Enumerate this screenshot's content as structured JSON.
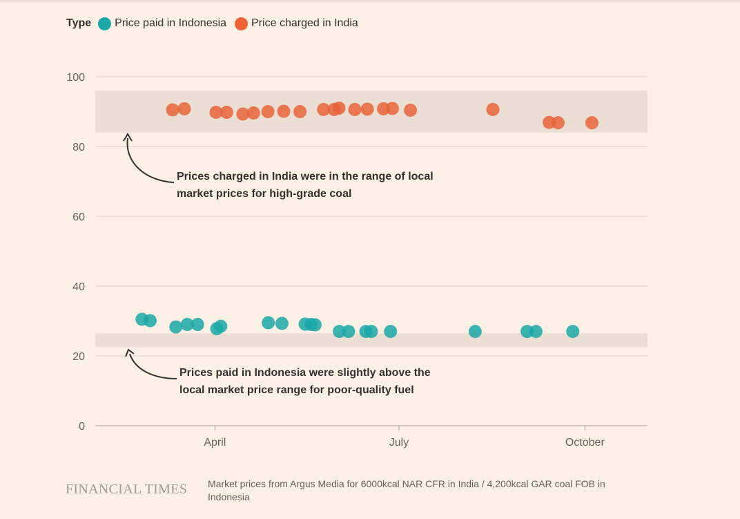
{
  "legend": {
    "title": "Type",
    "items": [
      {
        "label": "Price paid in Indonesia",
        "color": "#1aa7a7"
      },
      {
        "label": "Price charged in India",
        "color": "#f06236"
      }
    ]
  },
  "annotations": {
    "india": {
      "line1": "Prices charged in India were in the range of local",
      "line2": "market prices for high-grade coal"
    },
    "indonesia": {
      "line1": "Prices paid in Indonesia were slightly above the",
      "line2": "local market price range for poor-quality fuel"
    }
  },
  "footer": {
    "logo": "FINANCIAL TIMES",
    "source": "Market prices from Argus Media for 6000kcal NAR CFR in India / 4,200kcal GAR coal FOB in Indonesia"
  },
  "chart_data": {
    "type": "scatter",
    "title": "",
    "xlabel": "",
    "ylabel": "",
    "ylim": [
      0,
      100
    ],
    "y_ticks": [
      0,
      20,
      40,
      60,
      80,
      100
    ],
    "x_range_days": [
      15,
      165
    ],
    "x_ticks": [
      {
        "label": "April",
        "day": 47.5
      },
      {
        "label": "July",
        "day": 97.5
      },
      {
        "label": "October",
        "day": 148
      }
    ],
    "bands": [
      {
        "name": "India local market range (high-grade coal)",
        "y0": 84,
        "y1": 96
      },
      {
        "name": "Indonesia local market range (poor-quality fuel)",
        "y0": 22.5,
        "y1": 26.5
      }
    ],
    "series": [
      {
        "name": "Price charged in India",
        "color": "#e8643a",
        "points": [
          {
            "x": 36,
            "y": 90.5
          },
          {
            "x": 39.2,
            "y": 90.8
          },
          {
            "x": 47.8,
            "y": 89.8
          },
          {
            "x": 50.7,
            "y": 89.8
          },
          {
            "x": 55.1,
            "y": 89.3
          },
          {
            "x": 58,
            "y": 89.6
          },
          {
            "x": 61.9,
            "y": 90
          },
          {
            "x": 66.2,
            "y": 90.1
          },
          {
            "x": 70.6,
            "y": 90
          },
          {
            "x": 77,
            "y": 90.6
          },
          {
            "x": 79.9,
            "y": 90.6
          },
          {
            "x": 81.2,
            "y": 91
          },
          {
            "x": 85.5,
            "y": 90.6
          },
          {
            "x": 88.9,
            "y": 90.7
          },
          {
            "x": 93.3,
            "y": 90.8
          },
          {
            "x": 95.7,
            "y": 90.9
          },
          {
            "x": 100.6,
            "y": 90.4
          },
          {
            "x": 123,
            "y": 90.6
          },
          {
            "x": 138.3,
            "y": 86.9
          },
          {
            "x": 140.7,
            "y": 86.8
          },
          {
            "x": 149.9,
            "y": 86.8
          }
        ]
      },
      {
        "name": "Price paid in Indonesia",
        "color": "#1aa7a7",
        "points": [
          {
            "x": 27.7,
            "y": 30.5
          },
          {
            "x": 29.9,
            "y": 30.1
          },
          {
            "x": 36.9,
            "y": 28.3
          },
          {
            "x": 40,
            "y": 29
          },
          {
            "x": 42.8,
            "y": 29
          },
          {
            "x": 48,
            "y": 27.8
          },
          {
            "x": 49.1,
            "y": 28.5
          },
          {
            "x": 62,
            "y": 29.5
          },
          {
            "x": 65.7,
            "y": 29.3
          },
          {
            "x": 72,
            "y": 29.1
          },
          {
            "x": 73.6,
            "y": 29
          },
          {
            "x": 74.7,
            "y": 28.9
          },
          {
            "x": 81.3,
            "y": 27
          },
          {
            "x": 83.8,
            "y": 27
          },
          {
            "x": 88.5,
            "y": 27
          },
          {
            "x": 90,
            "y": 27
          },
          {
            "x": 95.2,
            "y": 27
          },
          {
            "x": 118.2,
            "y": 27
          },
          {
            "x": 132.3,
            "y": 27
          },
          {
            "x": 134.7,
            "y": 27
          },
          {
            "x": 144.7,
            "y": 27
          }
        ]
      }
    ]
  }
}
